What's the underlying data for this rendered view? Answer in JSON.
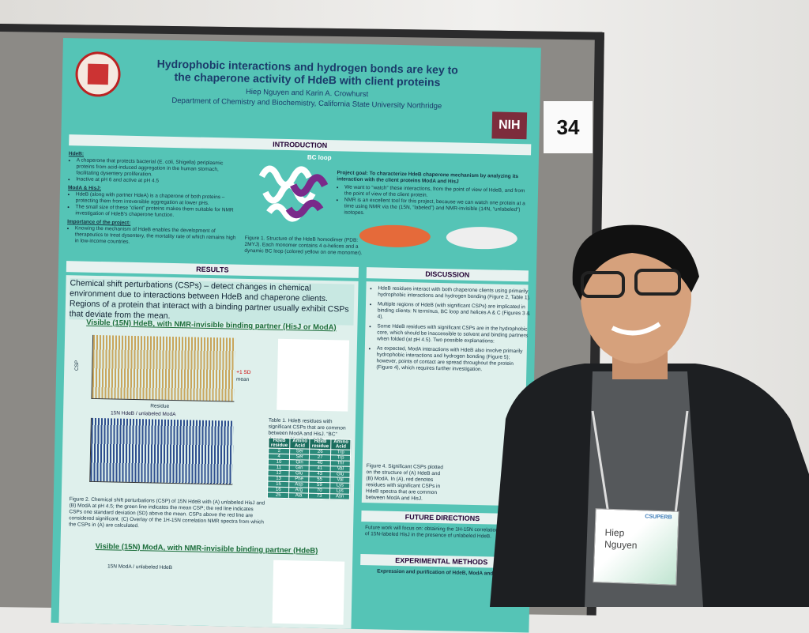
{
  "poster": {
    "title": "Hydrophobic interactions and hydrogen bonds are key to the chaperone activity of HdeB with client proteins",
    "authors": "Hiep Nguyen and Karin A. Crowhurst",
    "department": "Department of Chemistry and Biochemistry, California State University Northridge",
    "logo": "NIH",
    "introduction": {
      "heading": "INTRODUCTION",
      "items": [
        {
          "head": "HdeB:",
          "bullets": [
            "A chaperone that protects bacterial (E. coli, Shigella) periplasmic proteins from acid-induced aggregation in the human stomach, facilitating dysentery proliferation.",
            "Inactive at pH 6 and active at pH 4.5"
          ]
        },
        {
          "head": "ModA & HisJ:",
          "bullets": [
            "HdeB (along with partner HdeA) is a chaperone of both proteins – protecting them from irreversible aggregation at lower pHs.",
            "The small size of these “client” proteins makes them suitable for NMR investigation of HdeB's chaperone function."
          ]
        },
        {
          "head": "Importance of the project:",
          "bullets": [
            "Knowing the mechanism of HdeB enables the development of therapeutics to treat dysentery, the mortality rate of which remains high in low-income countries."
          ]
        }
      ],
      "structure_label": "BC loop",
      "figure_caption": "Figure 1. Structure of the HdeB homodimer (PDB: 2MYJ). Each monomer contains 4 α-helices and a dynamic BC loop (colored yellow on one monomer).",
      "goal": "Project goal: To characterize HdeB chaperone mechanism by analyzing its interaction with the client proteins ModA and HisJ",
      "goal_bullets": [
        "We want to “watch” these interactions, from the point of view of HdeB, and from the point of view of the client protein.",
        "NMR is an excellent tool for this project, because we can watch one protein at a time using NMR via the (15N, “labeled”) and NMR-invisible (14N, “unlabeled”) isotopes."
      ]
    },
    "results": {
      "heading": "RESULTS",
      "csp_text": "Chemical shift perturbations (CSPs) – detect changes in chemical environment due to interactions between HdeB and chaperone clients. Regions of a protein that interact with a binding partner usually exhibit CSPs that deviate from the mean.",
      "subtitle_a": "Visible (15N) HdeB, with NMR-invisible binding partner (HisJ or ModA)",
      "subtitle_b": "Visible (15N) ModA, with NMR-invisible binding partner (HdeB)",
      "axis_y": "CSP",
      "axis_x": "Residue",
      "sd_label": "+1 SD",
      "mean_label": "mean",
      "panel_b": "15N HdeB / unlabeled ModA",
      "panel_c": "15N ModA / unlabeled HdeB",
      "table_caption": "Table 1. HdeB residues with significant CSPs that are common between ModA and HisJ. “BC” denotes side chain CSP.",
      "table_header": [
        "HdeB residue",
        "Amino Acid",
        "HdeB residue",
        "Amino Acid"
      ],
      "table_rows": [
        [
          "2",
          "Ser",
          "26",
          "Trp"
        ],
        [
          "4",
          "Ser",
          "27",
          "Trp"
        ],
        [
          "10",
          "Gln",
          "40",
          "Thr"
        ],
        [
          "11",
          "Gln",
          "41",
          "Val"
        ],
        [
          "12",
          "Glu",
          "43",
          "Glu"
        ],
        [
          "13",
          "Phe",
          "55",
          "Val"
        ],
        [
          "15",
          "Asp",
          "59",
          "Lys"
        ],
        [
          "16",
          "Arg",
          "70",
          "Lys"
        ],
        [
          "25",
          "Ala",
          "73",
          "Asn"
        ]
      ],
      "figure_caption": "Figure 2. Chemical shift perturbations (CSP) of 15N HdeB with (A) unlabeled HisJ and (B) ModA at pH 4.5; the green line indicates the mean CSP; the red line indicates CSPs one standard deviation (SD) above the mean. CSPs above the red line are considered significant. (C) Overlay of the 1H-15N correlation NMR spectra from which the CSPs in (A) are calculated."
    },
    "discussion": {
      "heading": "DISCUSSION",
      "bullets": [
        "HdeB residues interact with both chaperone clients using primarily hydrophobic interactions and hydrogen bonding (Figure 2, Table 1).",
        "Multiple regions of HdeB (with significant CSPs) are implicated in binding clients: N terminus, BC loop and helices A & C (Figures 3 & 4).",
        "Some HdeB residues with significant CSPs are in the hydrophobic core, which should be inaccessible to solvent and binding partners when folded (at pH 4.5). Two possible explanations:",
        "As expected, ModA interactions with HdeB also involve primarily hydrophobic interactions and hydrogen bonding (Figure 5); however, points of contact are spread throughout the protein (Figure 4), which requires further investigation."
      ],
      "figure_caption": "Figure 4. Significant CSPs plotted on the structure of (A) HdeB and (B) ModA. In (A), red denotes residues with significant CSPs in HdeB spectra that are common between ModA and HisJ."
    },
    "future": {
      "heading": "FUTURE DIRECTIONS",
      "text": "Future work will focus on: obtaining the 1H-15N correlation spectra of 15N-labeled HisJ in the presence of unlabeled HdeB."
    },
    "methods": {
      "heading": "EXPERIMENTAL METHODS",
      "subheading": "Expression and purification of HdeB, ModA and HisJ"
    }
  },
  "board_number": "34",
  "badge": {
    "first_name": "Hiep",
    "last_name": "Nguyen",
    "event": "CSUPERB"
  }
}
